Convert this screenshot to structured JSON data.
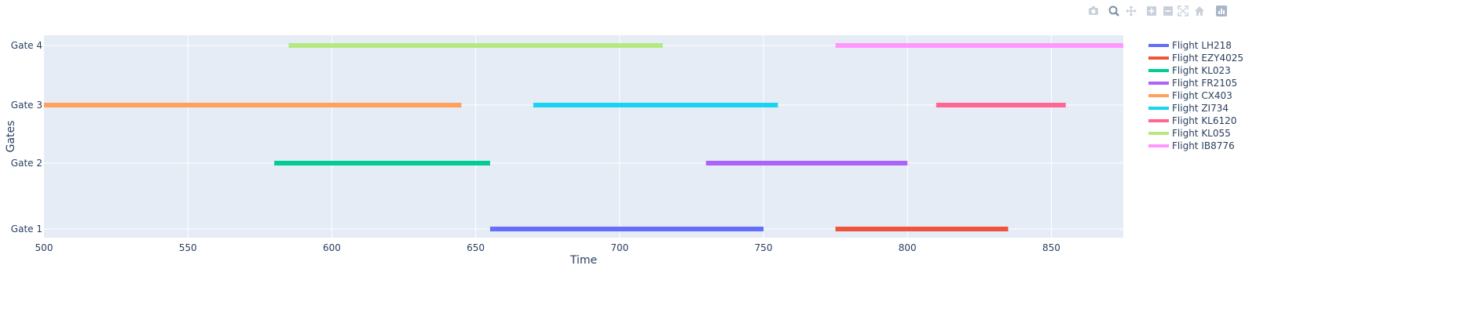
{
  "modebar": {
    "buttons": [
      "camera-icon",
      "zoom-icon",
      "pan-icon",
      "zoom-in-icon",
      "zoom-out-icon",
      "autoscale-icon",
      "home-icon",
      "plotly-logo-icon"
    ]
  },
  "chart_data": {
    "type": "gantt",
    "xlabel": "Time",
    "ylabel": "Gates",
    "xlim": [
      500,
      875
    ],
    "x_ticks": [
      500,
      550,
      600,
      650,
      700,
      750,
      800,
      850
    ],
    "categories": [
      "Gate 1",
      "Gate 2",
      "Gate 3",
      "Gate 4"
    ],
    "grid": true,
    "plot_bgcolor": "#e5ecf6",
    "legend_position": "right",
    "series": [
      {
        "name": "Flight LH218",
        "color": "#636efa",
        "gate": "Gate 1",
        "start": 655,
        "end": 750
      },
      {
        "name": "Flight EZY4025",
        "color": "#ef553b",
        "gate": "Gate 1",
        "start": 775,
        "end": 835
      },
      {
        "name": "Flight KL023",
        "color": "#00cc96",
        "gate": "Gate 2",
        "start": 580,
        "end": 655
      },
      {
        "name": "Flight FR2105",
        "color": "#ab63fa",
        "gate": "Gate 2",
        "start": 730,
        "end": 800
      },
      {
        "name": "Flight CX403",
        "color": "#ffa15a",
        "gate": "Gate 3",
        "start": 500,
        "end": 645
      },
      {
        "name": "Flight ZI734",
        "color": "#19d3f3",
        "gate": "Gate 3",
        "start": 670,
        "end": 755
      },
      {
        "name": "Flight KL6120",
        "color": "#ff6692",
        "gate": "Gate 3",
        "start": 810,
        "end": 855
      },
      {
        "name": "Flight KL055",
        "color": "#b6e880",
        "gate": "Gate 4",
        "start": 585,
        "end": 715
      },
      {
        "name": "Flight IB8776",
        "color": "#ff97ff",
        "gate": "Gate 4",
        "start": 775,
        "end": 875
      }
    ]
  }
}
